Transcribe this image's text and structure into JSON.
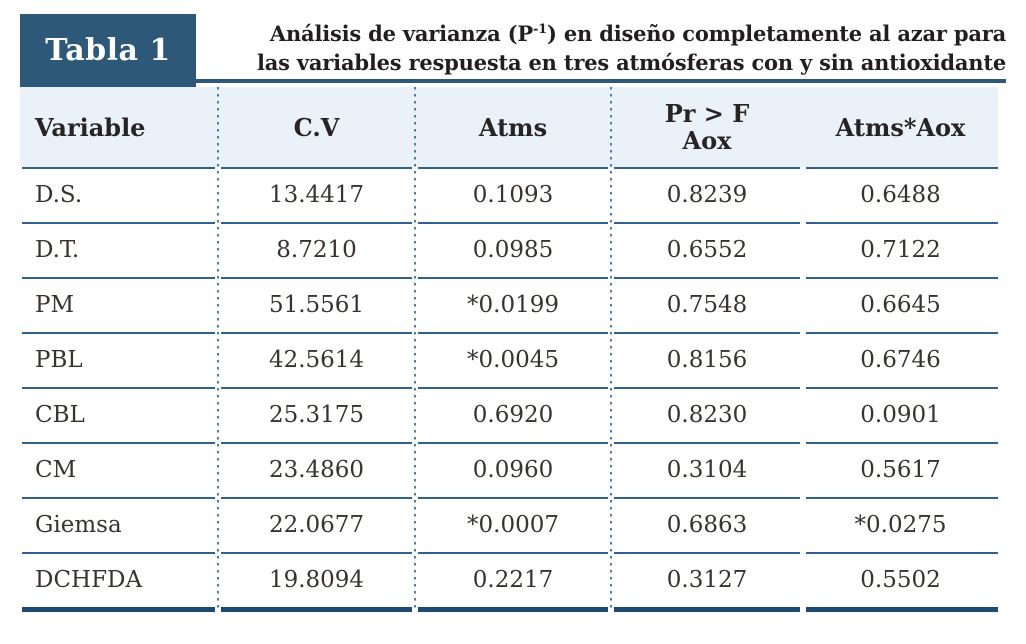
{
  "table_label": "Tabla 1",
  "title": {
    "line1_pre": "Análisis de varianza (P",
    "line1_sup": "-1",
    "line1_post": ") en diseño completamente al azar para",
    "line2": "las variables respuesta en tres atmósferas con y sin antioxidante"
  },
  "header": {
    "variable": "Variable",
    "cv": "C.V",
    "atms": "Atms",
    "pr_f": "Pr > F",
    "aox": "Aox",
    "atms_aox": "Atms*Aox"
  },
  "rows": [
    [
      "D.S.",
      "13.4417",
      "0.1093",
      "0.8239",
      "0.6488"
    ],
    [
      "D.T.",
      "8.7210",
      "0.0985",
      "0.6552",
      "0.7122"
    ],
    [
      "PM",
      "51.5561",
      "*0.0199",
      "0.7548",
      "0.6645"
    ],
    [
      "PBL",
      "42.5614",
      "*0.0045",
      "0.8156",
      "0.6746"
    ],
    [
      "CBL",
      "25.3175",
      "0.6920",
      "0.8230",
      "0.0901"
    ],
    [
      "CM",
      "23.4860",
      "0.0960",
      "0.3104",
      "0.5617"
    ],
    [
      "Giemsa",
      "22.0677",
      "*0.0007",
      "0.6863",
      "*0.0275"
    ],
    [
      "DCHFDA",
      "19.8094",
      "0.2217",
      "0.3127",
      "0.5502"
    ]
  ],
  "colors": {
    "label_box_bg": "#2e5878",
    "header_band_bg": "#eaf1f8",
    "row_rule": "#31618f",
    "bottom_rule": "#1e4a72",
    "dotted_separator": "#4b7dab"
  }
}
